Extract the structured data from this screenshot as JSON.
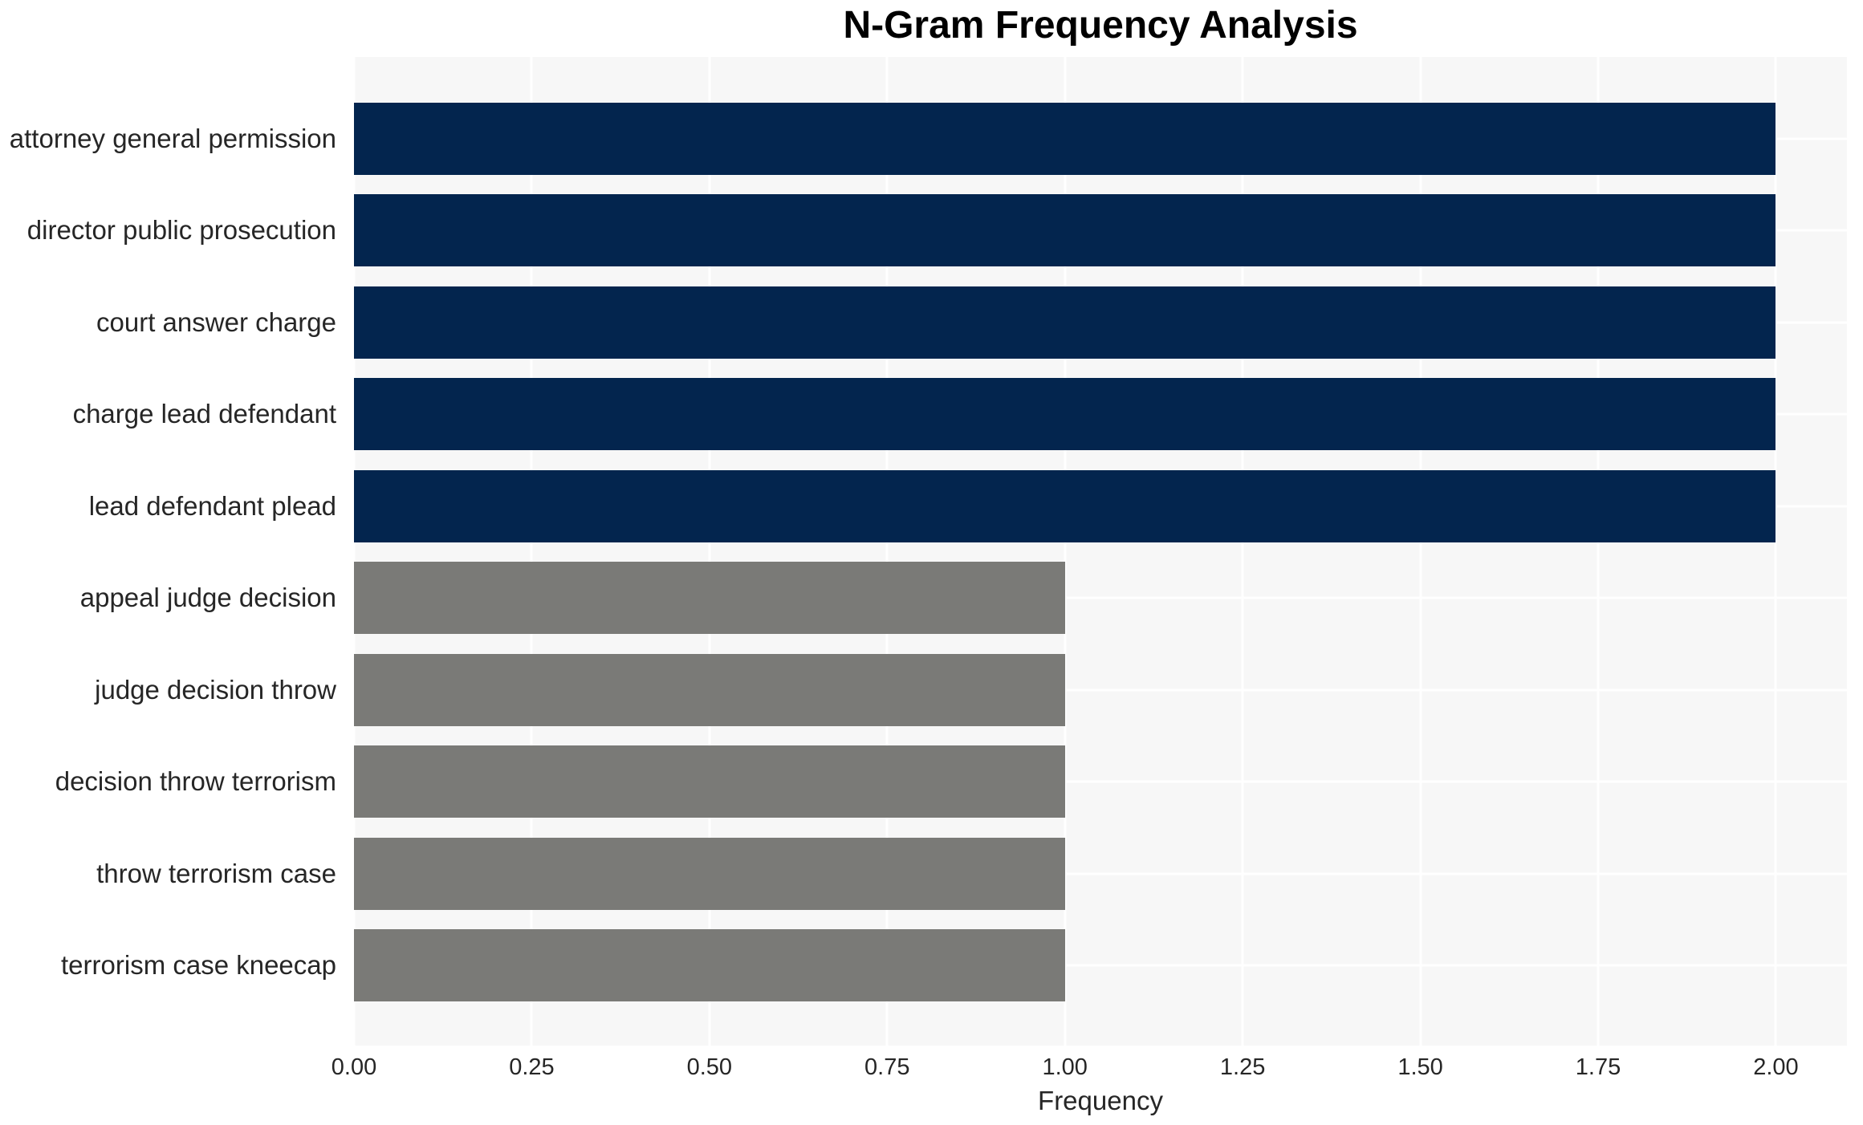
{
  "chart_data": {
    "type": "bar",
    "orientation": "horizontal",
    "title": "N-Gram Frequency Analysis",
    "xlabel": "Frequency",
    "ylabel": "",
    "categories": [
      "attorney general permission",
      "director public prosecution",
      "court answer charge",
      "charge lead defendant",
      "lead defendant plead",
      "appeal judge decision",
      "judge decision throw",
      "decision throw terrorism",
      "throw terrorism case",
      "terrorism case kneecap"
    ],
    "values": [
      2,
      2,
      2,
      2,
      2,
      1,
      1,
      1,
      1,
      1
    ],
    "xlim": [
      0,
      2.1
    ],
    "xticks": [
      0,
      0.25,
      0.5,
      0.75,
      1.0,
      1.25,
      1.5,
      1.75,
      2.0
    ],
    "xtick_labels": [
      "0.00",
      "0.25",
      "0.50",
      "0.75",
      "1.00",
      "1.25",
      "1.50",
      "1.75",
      "2.00"
    ],
    "grid": "white vertical and horizontal gridlines on light gray panel",
    "legend": null,
    "colors": {
      "bar_high": "#03254e",
      "bar_low": "#7a7a77",
      "plot_background": "#f7f7f7",
      "gridline": "#ffffff",
      "tick_text": "#262626",
      "title_text": "#000000"
    },
    "bar_colors": [
      "#03254e",
      "#03254e",
      "#03254e",
      "#03254e",
      "#03254e",
      "#7a7a77",
      "#7a7a77",
      "#7a7a77",
      "#7a7a77",
      "#7a7a77"
    ]
  }
}
